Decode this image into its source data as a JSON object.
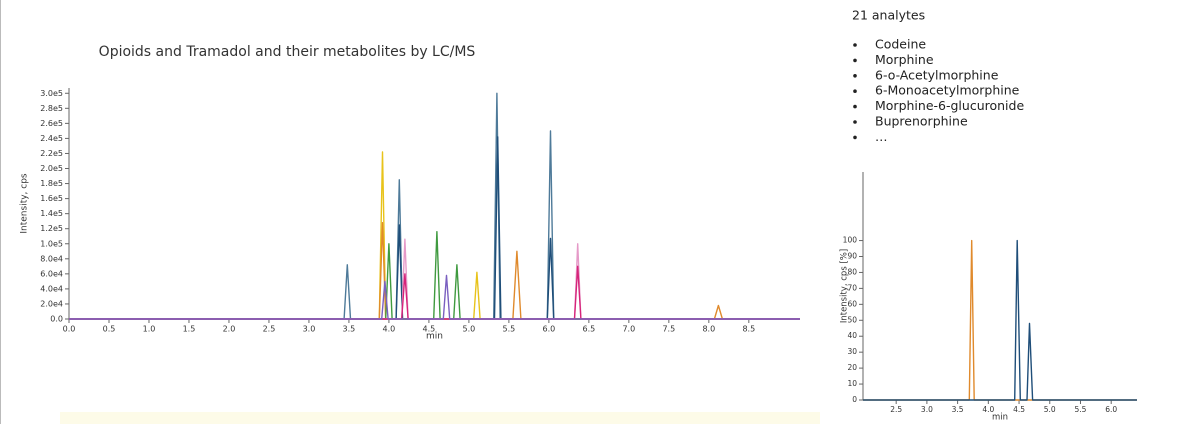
{
  "chart_data": [
    {
      "type": "line",
      "title": "Opioids and Tramadol and their metabolites by LC/MS",
      "x_label": "min",
      "y_label": "Intensity, cps",
      "xlim": [
        0,
        9.14
      ],
      "ylim": [
        0,
        307000
      ],
      "xticks": [
        {
          "value": 0,
          "label": "0.0"
        },
        0.5,
        {
          "value": 1,
          "label": "1.0"
        },
        1.5,
        {
          "value": 2,
          "label": "2.0"
        },
        2.5,
        {
          "value": 3,
          "label": "3.0"
        },
        3.5,
        {
          "value": 4,
          "label": "4.0"
        },
        4.5,
        {
          "value": 5,
          "label": "5.0"
        },
        5.5,
        {
          "value": 6,
          "label": "6.0"
        },
        6.5,
        {
          "value": 7,
          "label": "7.0"
        },
        7.5,
        {
          "value": 8,
          "label": "8.0"
        },
        8.5
      ],
      "yticks": [
        {
          "value": 0,
          "label": "0.0"
        },
        {
          "value": 20000,
          "label": "2.0e4"
        },
        {
          "value": 40000,
          "label": "4.0e4"
        },
        {
          "value": 60000,
          "label": "6.0e4"
        },
        {
          "value": 80000,
          "label": "8.0e4"
        },
        {
          "value": 100000,
          "label": "1.0e5"
        },
        {
          "value": 120000,
          "label": "1.2e5"
        },
        {
          "value": 140000,
          "label": "1.4e5"
        },
        {
          "value": 160000,
          "label": "1.6e5"
        },
        {
          "value": 180000,
          "label": "1.8e5"
        },
        {
          "value": 200000,
          "label": "2.0e5"
        },
        {
          "value": 220000,
          "label": "2.2e5"
        },
        {
          "value": 240000,
          "label": "2.4e5"
        },
        {
          "value": 260000,
          "label": "2.6e5"
        },
        {
          "value": 280000,
          "label": "2.8e5"
        },
        {
          "value": 300000,
          "label": "3.0e5"
        }
      ],
      "series": [
        {
          "color": "#4e7a99",
          "x": [
            0,
            3.44,
            3.48,
            3.52,
            4.09,
            4.13,
            4.17,
            5.31,
            5.35,
            5.39,
            5.98,
            6.02,
            6.06,
            9.14
          ],
          "values": [
            0,
            0,
            72000,
            0,
            0,
            185000,
            0,
            0,
            300000,
            0,
            0,
            250000,
            0,
            0
          ]
        },
        {
          "color": "#1f4e79",
          "x": [
            0,
            4.09,
            4.13,
            4.17,
            5.32,
            5.36,
            5.4,
            5.98,
            6.02,
            6.06,
            9.14
          ],
          "values": [
            0,
            0,
            125000,
            0,
            0,
            242000,
            0,
            0,
            107000,
            0,
            0
          ]
        },
        {
          "color": "#e8c31a",
          "x": [
            0,
            3.88,
            3.92,
            3.96,
            5.06,
            5.1,
            5.14,
            9.14
          ],
          "values": [
            0,
            0,
            222000,
            0,
            0,
            62000,
            0,
            0
          ]
        },
        {
          "color": "#e08a2c",
          "x": [
            0,
            3.88,
            3.92,
            3.96,
            5.55,
            5.6,
            5.65,
            8.07,
            8.12,
            8.17,
            9.14
          ],
          "values": [
            0,
            0,
            128000,
            0,
            0,
            90000,
            0,
            0,
            18000,
            0,
            0
          ]
        },
        {
          "color": "#3f9a3f",
          "x": [
            0,
            3.96,
            4.0,
            4.04,
            4.56,
            4.6,
            4.64,
            4.81,
            4.85,
            4.89,
            9.14
          ],
          "values": [
            0,
            0,
            100000,
            0,
            0,
            116000,
            0,
            0,
            72000,
            0,
            0
          ]
        },
        {
          "color": "#e59ac8",
          "x": [
            0,
            4.16,
            4.2,
            4.24,
            6.32,
            6.36,
            6.4,
            9.14
          ],
          "values": [
            0,
            0,
            106000,
            0,
            0,
            100000,
            0,
            0
          ]
        },
        {
          "color": "#d6247a",
          "x": [
            0,
            4.16,
            4.2,
            4.24,
            6.32,
            6.36,
            6.4,
            9.14
          ],
          "values": [
            0,
            0,
            60000,
            0,
            0,
            70000,
            0,
            0
          ]
        },
        {
          "color": "#7a5fc0",
          "x": [
            0,
            3.91,
            3.95,
            3.99,
            4.68,
            4.72,
            4.76,
            9.14
          ],
          "values": [
            0,
            0,
            50000,
            0,
            0,
            58000,
            0,
            0
          ]
        }
      ]
    },
    {
      "type": "line",
      "x_label": "min",
      "y_label": "Intensity, cps [%]",
      "xlim": [
        1.96,
        6.42
      ],
      "ylim": [
        0,
        143
      ],
      "xticks": [
        2.5,
        {
          "value": 3,
          "label": "3.0"
        },
        3.5,
        {
          "value": 4,
          "label": "4.0"
        },
        4.5,
        {
          "value": 5,
          "label": "5.0"
        },
        5.5,
        {
          "value": 6,
          "label": "6.0"
        }
      ],
      "yticks": [
        0,
        10,
        20,
        30,
        40,
        50,
        60,
        70,
        80,
        90,
        100
      ],
      "series": [
        {
          "color": "#e08a2c",
          "x": [
            1.96,
            3.69,
            3.73,
            3.77,
            6.42
          ],
          "values": [
            0,
            0,
            100,
            0,
            0
          ]
        },
        {
          "color": "#1f4e79",
          "x": [
            1.96,
            4.43,
            4.47,
            4.52,
            4.63,
            4.67,
            4.72,
            6.42
          ],
          "values": [
            0,
            0,
            100,
            0,
            0,
            48,
            0,
            0
          ]
        }
      ]
    }
  ],
  "notes": {
    "heading": "21 analytes",
    "items": [
      "Codeine",
      "Morphine",
      "6-o-Acetylmorphine",
      "6-Monoacetylmorphine",
      "Morphine-6-glucuronide",
      "Buprenorphine",
      "…"
    ]
  }
}
